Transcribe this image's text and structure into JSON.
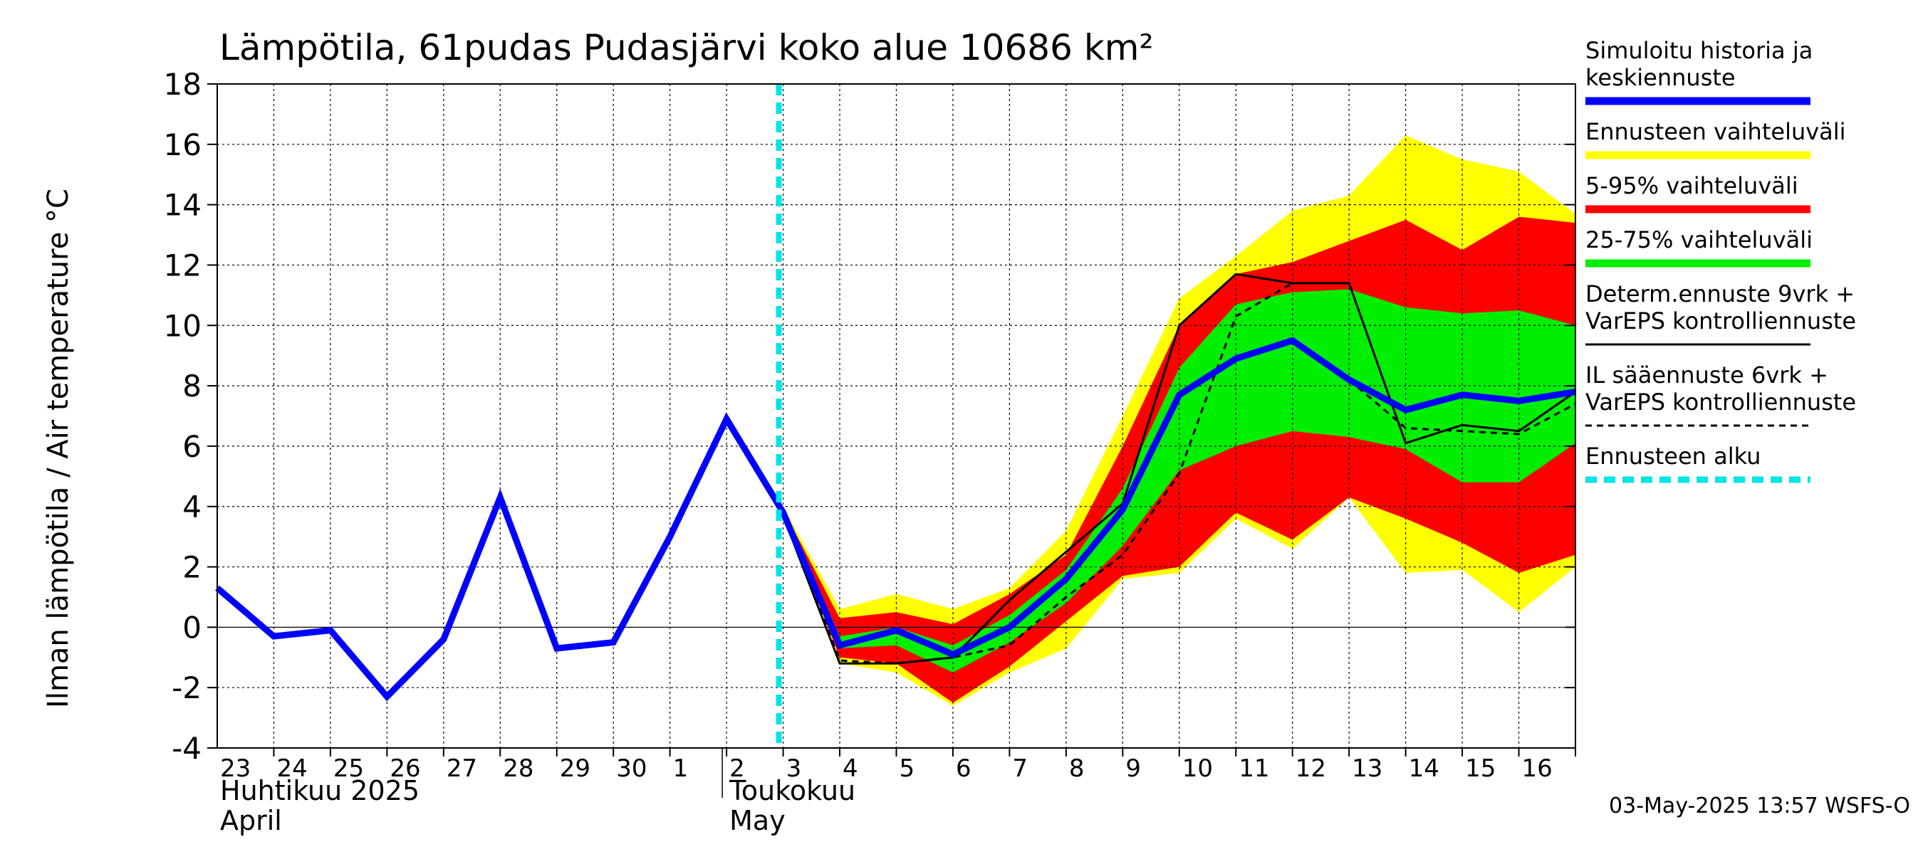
{
  "chart_data": {
    "type": "line",
    "title": "Lämpötila, 61pudas Pudasjärvi koko alue 10686 km²",
    "ylabel": "Ilman lämpötila / Air temperature   °C",
    "ylim": [
      -4,
      18
    ],
    "yticks": [
      -4,
      -2,
      0,
      2,
      4,
      6,
      8,
      10,
      12,
      14,
      16,
      18
    ],
    "xlim": [
      0,
      24
    ],
    "grid": true,
    "legend_position": "right",
    "day_labels": [
      "23",
      "24",
      "25",
      "26",
      "27",
      "28",
      "29",
      "30",
      "1",
      "2",
      "3",
      "4",
      "5",
      "6",
      "7",
      "8",
      "9",
      "10",
      "11",
      "12",
      "13",
      "14",
      "15",
      "16"
    ],
    "month_labels": [
      {
        "fi": "Huhtikuu  2025",
        "en": "April",
        "start": 0
      },
      {
        "fi": "Toukokuu",
        "en": "May",
        "start": 9
      }
    ],
    "forecast_start_x": 10,
    "colors": {
      "history": "#0000ff",
      "full_range": "#ffff00",
      "p5_95": "#ff0000",
      "p25_75": "#00ee00",
      "determ": "#000000",
      "il": "#000000",
      "forecast_start": "#00e5e5",
      "grid": "#000000"
    },
    "series": [
      {
        "name": "Simuloitu historia ja keskiennuste",
        "style": "history",
        "x": [
          0,
          1,
          2,
          3,
          4,
          5,
          6,
          7,
          8,
          9,
          10,
          11,
          12,
          13,
          14,
          15,
          16,
          17,
          18,
          19,
          20,
          21,
          22,
          23,
          24
        ],
        "values": [
          1.3,
          -0.3,
          -0.1,
          -2.3,
          -0.4,
          4.3,
          -0.7,
          -0.5,
          3.0,
          6.9,
          3.8,
          -0.6,
          -0.1,
          -0.9,
          0.0,
          1.6,
          3.9,
          7.7,
          8.9,
          9.5,
          8.2,
          7.2,
          7.7,
          7.5,
          7.8
        ]
      },
      {
        "name": "Ennusteen vaihteluväli",
        "style": "full_range",
        "x": [
          9,
          10,
          11,
          12,
          13,
          14,
          15,
          16,
          17,
          18,
          19,
          20,
          21,
          22,
          23,
          24
        ],
        "low": [
          6.9,
          3.8,
          -1.2,
          -1.5,
          -2.6,
          -1.5,
          -0.7,
          1.6,
          1.8,
          3.6,
          2.6,
          4.3,
          1.8,
          1.9,
          0.5,
          2.0
        ],
        "high": [
          6.9,
          4.0,
          0.6,
          1.1,
          0.6,
          1.3,
          3.2,
          7.0,
          10.9,
          12.3,
          13.8,
          14.3,
          16.3,
          15.5,
          15.1,
          13.7
        ]
      },
      {
        "name": "5-95% vaihteluväli",
        "style": "p5_95",
        "x": [
          9,
          10,
          11,
          12,
          13,
          14,
          15,
          16,
          17,
          18,
          19,
          20,
          21,
          22,
          23,
          24
        ],
        "low": [
          6.9,
          3.8,
          -1.0,
          -1.2,
          -2.5,
          -1.3,
          0.2,
          1.7,
          2.0,
          3.8,
          2.9,
          4.3,
          3.6,
          2.8,
          1.8,
          2.4
        ],
        "high": [
          6.9,
          3.9,
          0.3,
          0.5,
          0.1,
          1.1,
          2.4,
          6.0,
          10.0,
          11.7,
          12.1,
          12.8,
          13.5,
          12.5,
          13.6,
          13.4
        ]
      },
      {
        "name": "25-75% vaihteluväli",
        "style": "p25_75",
        "x": [
          9,
          10,
          11,
          12,
          13,
          14,
          15,
          16,
          17,
          18,
          19,
          20,
          21,
          22,
          23,
          24
        ],
        "low": [
          6.9,
          3.8,
          -0.7,
          -0.6,
          -1.5,
          -0.5,
          0.8,
          2.7,
          5.2,
          6.0,
          6.5,
          6.3,
          5.9,
          4.8,
          4.8,
          6.1
        ],
        "high": [
          6.9,
          3.8,
          -0.3,
          0.0,
          -0.6,
          0.4,
          1.9,
          4.6,
          8.6,
          10.7,
          11.1,
          11.2,
          10.6,
          10.4,
          10.5,
          10.0
        ]
      },
      {
        "name": "Determ.ennuste 9vrk + VarEPS kontrolliennuste",
        "style": "determ",
        "x": [
          9,
          10,
          11,
          12,
          13,
          14,
          15,
          16,
          17,
          18,
          19,
          20,
          21,
          22,
          23,
          24
        ],
        "values": [
          6.9,
          3.7,
          -1.2,
          -1.2,
          -1.0,
          0.9,
          2.5,
          4.1,
          10.0,
          11.7,
          11.4,
          11.4,
          6.1,
          6.7,
          6.5,
          7.8
        ]
      },
      {
        "name": "IL sääennuste 6vrk  + VarEPS kontrolliennuste",
        "style": "il",
        "x": [
          10,
          11,
          12,
          13,
          14,
          15,
          16,
          17,
          18,
          19
        ],
        "values": [
          3.8,
          -1.1,
          -1.2,
          -1.0,
          -0.6,
          1.0,
          2.4,
          5.1,
          10.3,
          11.4
        ],
        "x2": [
          20,
          21,
          22,
          23,
          24
        ],
        "values2": [
          8.2,
          6.6,
          6.5,
          6.4,
          7.4
        ]
      },
      {
        "name": "Ennusteen alku",
        "style": "forecast_start"
      }
    ]
  },
  "legend": {
    "items": [
      {
        "lines": [
          "Simuloitu historia ja",
          "keskiennuste"
        ],
        "style": "history"
      },
      {
        "lines": [
          "Ennusteen vaihteluväli"
        ],
        "style": "full_range"
      },
      {
        "lines": [
          "5-95% vaihteluväli"
        ],
        "style": "p5_95"
      },
      {
        "lines": [
          "25-75% vaihteluväli"
        ],
        "style": "p25_75"
      },
      {
        "lines": [
          "Determ.ennuste 9vrk +",
          "VarEPS kontrolliennuste"
        ],
        "style": "determ"
      },
      {
        "lines": [
          "IL sääennuste 6vrk  +",
          "  VarEPS kontrolliennuste"
        ],
        "style": "il"
      },
      {
        "lines": [
          "Ennusteen alku"
        ],
        "style": "forecast_start"
      }
    ]
  },
  "footer": {
    "timestamp": "03-May-2025 13:57 WSFS-O"
  }
}
